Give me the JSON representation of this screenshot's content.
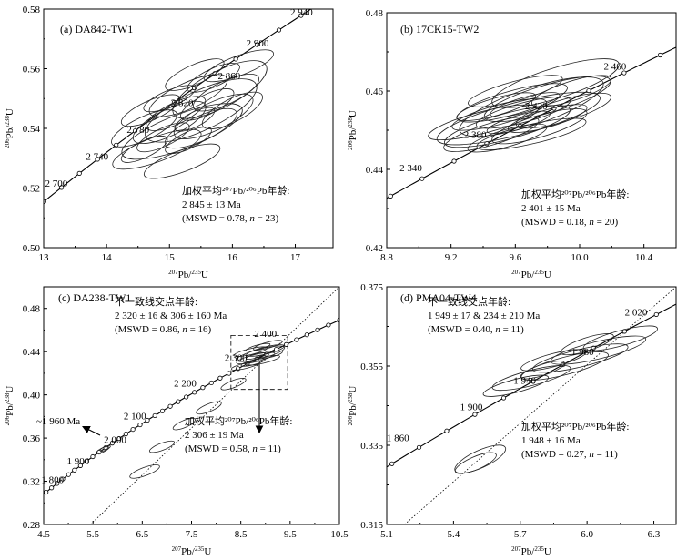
{
  "chart_data": [
    {
      "type": "scatter",
      "panel_label": "(a) DA842-TW1",
      "xlabel": "207Pb/235U",
      "ylabel": "206Pb/238U",
      "xlim": [
        13,
        17.6
      ],
      "ylim": [
        0.5,
        0.58
      ],
      "xticks": [
        13,
        14,
        15,
        16,
        17
      ],
      "yticks": [
        0.5,
        0.52,
        0.54,
        0.56,
        0.58
      ],
      "age_labels": [
        {
          "age": "2 700",
          "x": 13.2,
          "y": 0.5205
        },
        {
          "age": "2 740",
          "x": 13.85,
          "y": 0.5295
        },
        {
          "age": "2 780",
          "x": 14.5,
          "y": 0.5385
        },
        {
          "age": "2 820",
          "x": 15.2,
          "y": 0.5475
        },
        {
          "age": "2 860",
          "x": 15.95,
          "y": 0.5565
        },
        {
          "age": "2 900",
          "x": 16.4,
          "y": 0.5675
        },
        {
          "age": "2 940",
          "x": 17.1,
          "y": 0.5778
        }
      ],
      "annotation": {
        "l1": "加权平均²⁰⁷Pb/²⁰⁶Pb年龄:",
        "l2": "2 845 ± 13 Ma",
        "l3": "(MSWD = 0.78, n = 23)"
      },
      "ellipses": [
        {
          "cx": 15.2,
          "cy": 0.539,
          "rx": 0.95,
          "ry": 0.0105
        },
        {
          "cx": 15.5,
          "cy": 0.546,
          "rx": 0.85,
          "ry": 0.012
        },
        {
          "cx": 15.8,
          "cy": 0.553,
          "rx": 0.7,
          "ry": 0.011
        },
        {
          "cx": 14.8,
          "cy": 0.533,
          "rx": 0.7,
          "ry": 0.0075
        },
        {
          "cx": 15.0,
          "cy": 0.542,
          "rx": 0.55,
          "ry": 0.008
        },
        {
          "cx": 15.3,
          "cy": 0.551,
          "rx": 0.6,
          "ry": 0.008
        },
        {
          "cx": 15.7,
          "cy": 0.544,
          "rx": 0.6,
          "ry": 0.0085
        },
        {
          "cx": 14.6,
          "cy": 0.54,
          "rx": 0.5,
          "ry": 0.007
        },
        {
          "cx": 15.9,
          "cy": 0.552,
          "rx": 0.5,
          "ry": 0.007
        },
        {
          "cx": 15.1,
          "cy": 0.545,
          "rx": 0.45,
          "ry": 0.0065
        },
        {
          "cx": 15.5,
          "cy": 0.54,
          "rx": 0.55,
          "ry": 0.0075
        },
        {
          "cx": 15.2,
          "cy": 0.529,
          "rx": 0.6,
          "ry": 0.0065
        },
        {
          "cx": 16.1,
          "cy": 0.561,
          "rx": 0.55,
          "ry": 0.006
        },
        {
          "cx": 15.4,
          "cy": 0.558,
          "rx": 0.45,
          "ry": 0.006
        },
        {
          "cx": 14.9,
          "cy": 0.537,
          "rx": 0.4,
          "ry": 0.0055
        },
        {
          "cx": 15.6,
          "cy": 0.548,
          "rx": 0.4,
          "ry": 0.006
        },
        {
          "cx": 14.7,
          "cy": 0.546,
          "rx": 0.45,
          "ry": 0.006
        },
        {
          "cx": 16.0,
          "cy": 0.546,
          "rx": 0.45,
          "ry": 0.007
        },
        {
          "cx": 15.3,
          "cy": 0.536,
          "rx": 0.35,
          "ry": 0.005
        },
        {
          "cx": 15.0,
          "cy": 0.55,
          "rx": 0.4,
          "ry": 0.005
        },
        {
          "cx": 15.7,
          "cy": 0.557,
          "rx": 0.4,
          "ry": 0.0055
        },
        {
          "cx": 14.6,
          "cy": 0.533,
          "rx": 0.35,
          "ry": 0.005
        },
        {
          "cx": 15.4,
          "cy": 0.543,
          "rx": 0.3,
          "ry": 0.0045
        }
      ]
    },
    {
      "type": "scatter",
      "panel_label": "(b) 17CK15-TW2",
      "xlabel": "207Pb/235U",
      "ylabel": "206Pb/238U",
      "xlim": [
        8.8,
        10.6
      ],
      "ylim": [
        0.42,
        0.48
      ],
      "xticks": [
        8.8,
        9.2,
        9.6,
        10.0,
        10.4
      ],
      "yticks": [
        0.42,
        0.44,
        0.46,
        0.48
      ],
      "age_labels": [
        {
          "age": "2 340",
          "x": 8.95,
          "y": 0.4395
        },
        {
          "age": "2 380",
          "x": 9.35,
          "y": 0.448
        },
        {
          "age": "2 420",
          "x": 9.73,
          "y": 0.4553
        },
        {
          "age": "2 460",
          "x": 10.22,
          "y": 0.4655
        }
      ],
      "annotation": {
        "l1": "加权平均²⁰⁷Pb/²⁰⁶Pb年龄:",
        "l2": "2 401 ± 15 Ma",
        "l3": "(MSWD = 0.18, n = 20)"
      },
      "ellipses": [
        {
          "cx": 9.62,
          "cy": 0.453,
          "rx": 0.52,
          "ry": 0.0075
        },
        {
          "cx": 9.7,
          "cy": 0.456,
          "rx": 0.45,
          "ry": 0.0085
        },
        {
          "cx": 9.55,
          "cy": 0.451,
          "rx": 0.4,
          "ry": 0.006
        },
        {
          "cx": 9.8,
          "cy": 0.458,
          "rx": 0.4,
          "ry": 0.0065
        },
        {
          "cx": 9.85,
          "cy": 0.462,
          "rx": 0.4,
          "ry": 0.007
        },
        {
          "cx": 9.45,
          "cy": 0.449,
          "rx": 0.3,
          "ry": 0.005
        },
        {
          "cx": 9.65,
          "cy": 0.4545,
          "rx": 0.3,
          "ry": 0.0045
        },
        {
          "cx": 9.58,
          "cy": 0.457,
          "rx": 0.35,
          "ry": 0.0055
        },
        {
          "cx": 9.75,
          "cy": 0.451,
          "rx": 0.3,
          "ry": 0.005
        },
        {
          "cx": 9.5,
          "cy": 0.454,
          "rx": 0.3,
          "ry": 0.0045
        },
        {
          "cx": 9.9,
          "cy": 0.455,
          "rx": 0.3,
          "ry": 0.005
        },
        {
          "cx": 9.4,
          "cy": 0.452,
          "rx": 0.35,
          "ry": 0.005
        },
        {
          "cx": 9.7,
          "cy": 0.449,
          "rx": 0.35,
          "ry": 0.0045
        },
        {
          "cx": 9.6,
          "cy": 0.46,
          "rx": 0.3,
          "ry": 0.0045
        },
        {
          "cx": 9.8,
          "cy": 0.453,
          "rx": 0.25,
          "ry": 0.004
        },
        {
          "cx": 9.55,
          "cy": 0.448,
          "rx": 0.25,
          "ry": 0.004
        },
        {
          "cx": 9.66,
          "cy": 0.4565,
          "rx": 0.22,
          "ry": 0.0035
        },
        {
          "cx": 9.48,
          "cy": 0.456,
          "rx": 0.25,
          "ry": 0.004
        },
        {
          "cx": 9.95,
          "cy": 0.46,
          "rx": 0.25,
          "ry": 0.0045
        },
        {
          "cx": 9.62,
          "cy": 0.452,
          "rx": 0.2,
          "ry": 0.0032
        }
      ]
    },
    {
      "type": "scatter",
      "panel_label": "(c) DA238-TW1",
      "xlabel": "207Pb/235U",
      "ylabel": "206Pb/238U",
      "xlim": [
        4.5,
        10.5
      ],
      "ylim": [
        0.28,
        0.5
      ],
      "xticks": [
        4.5,
        5.5,
        6.5,
        7.5,
        8.5,
        9.5,
        10.5
      ],
      "yticks": [
        0.28,
        0.32,
        0.36,
        0.4,
        0.44,
        0.48
      ],
      "age_labels": [
        {
          "age": "1 800",
          "x": 4.68,
          "y": 0.3185
        },
        {
          "age": "1 900",
          "x": 5.2,
          "y": 0.3355
        },
        {
          "age": "2 000",
          "x": 5.95,
          "y": 0.3555
        },
        {
          "age": "2 100",
          "x": 6.35,
          "y": 0.3775
        },
        {
          "age": "2 200",
          "x": 7.37,
          "y": 0.4075
        },
        {
          "age": "2 300",
          "x": 8.4,
          "y": 0.4315
        },
        {
          "age": "2 400",
          "x": 9.0,
          "y": 0.4535
        }
      ],
      "annotation": {
        "l1": "不一致线交点年龄:",
        "l2": "2 320 ± 16 & 306 ± 160 Ma",
        "l3": "(MSWD = 0.86, n = 16)"
      },
      "annotation2": {
        "l1": "加权平均²⁰⁷Pb/²⁰⁶Pb年龄:",
        "l2": "2 306 ± 19 Ma",
        "l3": "(MSWD = 0.58, n = 11)"
      },
      "arrow_label": "~1 960 Ma",
      "discordia": {
        "x1": 5.45,
        "y1": 0.28,
        "x2": 10.5,
        "y2": 0.5
      },
      "highlight_box": {
        "x1": 8.3,
        "y1": 0.405,
        "x2": 9.45,
        "y2": 0.455
      },
      "ellipses": [
        {
          "cx": 8.9,
          "cy": 0.438,
          "rx": 0.5,
          "ry": 0.008
        },
        {
          "cx": 8.8,
          "cy": 0.434,
          "rx": 0.4,
          "ry": 0.006
        },
        {
          "cx": 9.0,
          "cy": 0.441,
          "rx": 0.4,
          "ry": 0.006
        },
        {
          "cx": 8.7,
          "cy": 0.44,
          "rx": 0.35,
          "ry": 0.005
        },
        {
          "cx": 8.95,
          "cy": 0.432,
          "rx": 0.35,
          "ry": 0.005
        },
        {
          "cx": 9.05,
          "cy": 0.446,
          "rx": 0.3,
          "ry": 0.005
        },
        {
          "cx": 8.6,
          "cy": 0.427,
          "rx": 0.3,
          "ry": 0.0045
        },
        {
          "cx": 8.85,
          "cy": 0.444,
          "rx": 0.25,
          "ry": 0.004
        },
        {
          "cx": 8.75,
          "cy": 0.43,
          "rx": 0.25,
          "ry": 0.004
        },
        {
          "cx": 9.1,
          "cy": 0.437,
          "rx": 0.25,
          "ry": 0.004
        },
        {
          "cx": 8.8,
          "cy": 0.436,
          "rx": 0.2,
          "ry": 0.0035
        },
        {
          "cx": 8.35,
          "cy": 0.41,
          "rx": 0.25,
          "ry": 0.006
        },
        {
          "cx": 7.85,
          "cy": 0.388,
          "rx": 0.25,
          "ry": 0.0065
        },
        {
          "cx": 7.35,
          "cy": 0.373,
          "rx": 0.22,
          "ry": 0.006
        },
        {
          "cx": 6.9,
          "cy": 0.352,
          "rx": 0.25,
          "ry": 0.006
        },
        {
          "cx": 6.55,
          "cy": 0.329,
          "rx": 0.3,
          "ry": 0.007
        },
        {
          "cx": 5.7,
          "cy": 0.349,
          "rx": 0.12,
          "ry": 0.0035
        },
        {
          "cx": 5.75,
          "cy": 0.3505,
          "rx": 0.1,
          "ry": 0.003
        }
      ]
    },
    {
      "type": "scatter",
      "panel_label": "(d) PMA04-TW4",
      "xlabel": "207Pb/235U",
      "ylabel": "206Pb/238U",
      "xlim": [
        5.1,
        6.4
      ],
      "ylim": [
        0.315,
        0.375
      ],
      "xticks": [
        5.1,
        5.4,
        5.7,
        6.0,
        6.3
      ],
      "yticks": [
        0.315,
        0.335,
        0.355,
        0.375
      ],
      "age_labels": [
        {
          "age": "1 860",
          "x": 5.15,
          "y": 0.336
        },
        {
          "age": "1 900",
          "x": 5.48,
          "y": 0.3438
        },
        {
          "age": "1 940",
          "x": 5.72,
          "y": 0.3505
        },
        {
          "age": "1 980",
          "x": 5.98,
          "y": 0.3578
        },
        {
          "age": "2 020",
          "x": 6.22,
          "y": 0.3678
        }
      ],
      "annotation": {
        "l1": "不一致线交点年龄:",
        "l2": "1 949 ± 17  &  234 ± 210 Ma",
        "l3": "(MSWD = 0.40, n = 11)"
      },
      "annotation2": {
        "l1": "加权平均²⁰⁷Pb/²⁰⁶Pb年龄:",
        "l2": "1 948 ± 16 Ma",
        "l3": "(MSWD = 0.27, n = 11)"
      },
      "discordia": {
        "x1": 5.18,
        "y1": 0.315,
        "x2": 6.4,
        "y2": 0.375
      },
      "ellipses": [
        {
          "cx": 5.97,
          "cy": 0.357,
          "rx": 0.22,
          "ry": 0.004
        },
        {
          "cx": 5.9,
          "cy": 0.355,
          "rx": 0.2,
          "ry": 0.004
        },
        {
          "cx": 6.05,
          "cy": 0.359,
          "rx": 0.22,
          "ry": 0.004
        },
        {
          "cx": 5.75,
          "cy": 0.352,
          "rx": 0.18,
          "ry": 0.0035
        },
        {
          "cx": 5.68,
          "cy": 0.35,
          "rx": 0.15,
          "ry": 0.003
        },
        {
          "cx": 6.15,
          "cy": 0.362,
          "rx": 0.17,
          "ry": 0.0035
        },
        {
          "cx": 5.85,
          "cy": 0.3565,
          "rx": 0.15,
          "ry": 0.003
        },
        {
          "cx": 6.0,
          "cy": 0.3605,
          "rx": 0.12,
          "ry": 0.003
        },
        {
          "cx": 5.8,
          "cy": 0.354,
          "rx": 0.1,
          "ry": 0.0025
        },
        {
          "cx": 5.52,
          "cy": 0.3315,
          "rx": 0.11,
          "ry": 0.004
        },
        {
          "cx": 5.5,
          "cy": 0.3305,
          "rx": 0.09,
          "ry": 0.003
        }
      ]
    }
  ]
}
